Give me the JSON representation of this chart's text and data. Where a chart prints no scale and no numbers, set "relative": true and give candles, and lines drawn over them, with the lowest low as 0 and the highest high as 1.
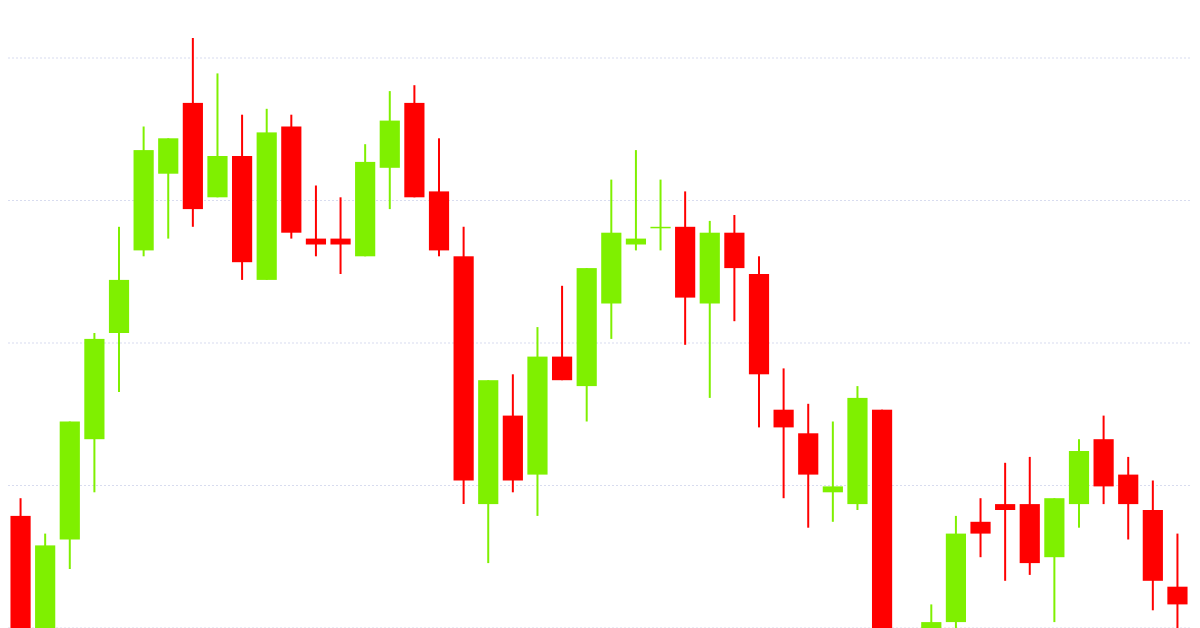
{
  "chart_data": {
    "type": "candlestick",
    "relative": true,
    "grid": "y",
    "categories": [
      null,
      null,
      null,
      null,
      null,
      null,
      null,
      null,
      null,
      null,
      null,
      null,
      null,
      null,
      null,
      null,
      null,
      null,
      null,
      null,
      null,
      null,
      null,
      null,
      null,
      null,
      null,
      null,
      null,
      null,
      null,
      null,
      null,
      null,
      null,
      null,
      null,
      null,
      null,
      null,
      null,
      null,
      null,
      null,
      null,
      null,
      null,
      null
    ],
    "ohlc": [
      [
        0.19,
        0.22,
        0,
        0
      ],
      [
        0,
        0.16,
        0,
        0.14
      ],
      [
        0.15,
        0.35,
        0.1,
        0.35
      ],
      [
        0.32,
        0.5,
        0.23,
        0.49
      ],
      [
        0.5,
        0.68,
        0.4,
        0.59
      ],
      [
        0.64,
        0.85,
        0.63,
        0.81
      ],
      [
        0.77,
        0.83,
        0.66,
        0.83
      ],
      [
        0.89,
        1,
        0.68,
        0.71
      ],
      [
        0.73,
        0.94,
        0.73,
        0.8
      ],
      [
        0.8,
        0.87,
        0.59,
        0.62
      ],
      [
        0.59,
        0.88,
        0.59,
        0.84
      ],
      [
        0.85,
        0.87,
        0.66,
        0.67
      ],
      [
        0.66,
        0.75,
        0.63,
        0.65
      ],
      [
        0.66,
        0.73,
        0.6,
        0.65
      ],
      [
        0.63,
        0.82,
        0.63,
        0.79
      ],
      [
        0.78,
        0.91,
        0.71,
        0.86
      ],
      [
        0.89,
        0.92,
        0.73,
        0.73
      ],
      [
        0.74,
        0.83,
        0.63,
        0.64
      ],
      [
        0.63,
        0.68,
        0.21,
        0.25
      ],
      [
        0.21,
        0.42,
        0.11,
        0.42
      ],
      [
        0.36,
        0.43,
        0.23,
        0.25
      ],
      [
        0.26,
        0.51,
        0.19,
        0.46
      ],
      [
        0.46,
        0.58,
        0.42,
        0.42
      ],
      [
        0.41,
        0.61,
        0.35,
        0.61
      ],
      [
        0.55,
        0.76,
        0.49,
        0.67
      ],
      [
        0.65,
        0.81,
        0.64,
        0.66
      ],
      [
        0.68,
        0.76,
        0.64,
        0.68
      ],
      [
        0.68,
        0.74,
        0.48,
        0.56
      ],
      [
        0.55,
        0.69,
        0.39,
        0.67
      ],
      [
        0.67,
        0.7,
        0.52,
        0.61
      ],
      [
        0.6,
        0.63,
        0.34,
        0.43
      ],
      [
        0.37,
        0.44,
        0.22,
        0.34
      ],
      [
        0.33,
        0.38,
        0.17,
        0.26
      ],
      [
        0.23,
        0.35,
        0.18,
        0.24
      ],
      [
        0.21,
        0.41,
        0.2,
        0.39
      ],
      [
        0.37,
        0.37,
        0,
        0
      ],
      null,
      [
        0,
        0.04,
        0,
        0.01
      ],
      [
        0.01,
        0.19,
        0,
        0.16
      ],
      [
        0.18,
        0.22,
        0.12,
        0.16
      ],
      [
        0.21,
        0.28,
        0.08,
        0.2
      ],
      [
        0.21,
        0.29,
        0.09,
        0.11
      ],
      [
        0.12,
        0.22,
        0.01,
        0.22
      ],
      [
        0.21,
        0.32,
        0.17,
        0.3
      ],
      [
        0.32,
        0.36,
        0.21,
        0.24
      ],
      [
        0.26,
        0.29,
        0.15,
        0.21
      ],
      [
        0.2,
        0.25,
        0.03,
        0.08
      ],
      [
        0.07,
        0.16,
        0,
        0.04
      ]
    ],
    "colors": [
      "#ff0000",
      "#7ff000",
      "#7ff000",
      "#7ff000",
      "#7ff000",
      "#7ff000",
      "#7ff000",
      "#ff0000",
      "#7ff000",
      "#ff0000",
      "#7ff000",
      "#ff0000",
      "#ff0000",
      "#ff0000",
      "#7ff000",
      "#7ff000",
      "#ff0000",
      "#ff0000",
      "#ff0000",
      "#7ff000",
      "#ff0000",
      "#7ff000",
      "#ff0000",
      "#7ff000",
      "#7ff000",
      "#7ff000",
      "#7ff000",
      "#ff0000",
      "#7ff000",
      "#ff0000",
      "#ff0000",
      "#ff0000",
      "#ff0000",
      "#7ff000",
      "#7ff000",
      "#ff0000",
      null,
      "#7ff000",
      "#7ff000",
      "#ff0000",
      "#ff0000",
      "#ff0000",
      "#7ff000",
      "#7ff000",
      "#ff0000",
      "#ff0000",
      "#ff0000",
      "#ff0000"
    ]
  }
}
